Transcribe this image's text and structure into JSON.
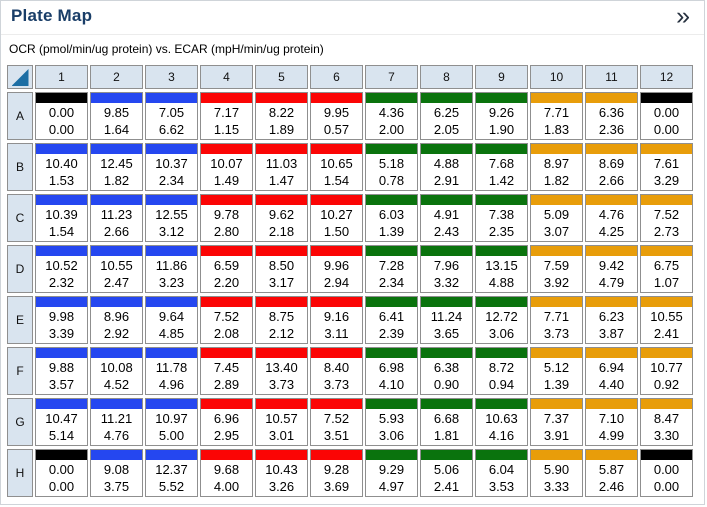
{
  "panel": {
    "title": "Plate Map",
    "expand_icon": "»"
  },
  "subtitle": "OCR (pmol/min/ug protein) vs. ECAR (mpH/min/ug protein)",
  "colors": {
    "title_text": "#1a3e68",
    "header_bg": "#d9e4ef",
    "grid_border": "#8f8f8f",
    "corner_triangle": "#1c6ea4",
    "chevron": "#26313f",
    "groups": {
      "black": "#000000",
      "blue": "#2547f0",
      "red": "#fb0505",
      "green": "#0a730d",
      "orange": "#e89d0a"
    }
  },
  "plate": {
    "column_headers": [
      "1",
      "2",
      "3",
      "4",
      "5",
      "6",
      "7",
      "8",
      "9",
      "10",
      "11",
      "12"
    ],
    "rows": [
      {
        "label": "A",
        "cells": [
          {
            "ocr": "0.00",
            "ecar": "0.00",
            "group": "black"
          },
          {
            "ocr": "9.85",
            "ecar": "1.64",
            "group": "blue"
          },
          {
            "ocr": "7.05",
            "ecar": "6.62",
            "group": "blue"
          },
          {
            "ocr": "7.17",
            "ecar": "1.15",
            "group": "red"
          },
          {
            "ocr": "8.22",
            "ecar": "1.89",
            "group": "red"
          },
          {
            "ocr": "9.95",
            "ecar": "0.57",
            "group": "red"
          },
          {
            "ocr": "4.36",
            "ecar": "2.00",
            "group": "green"
          },
          {
            "ocr": "6.25",
            "ecar": "2.05",
            "group": "green"
          },
          {
            "ocr": "9.26",
            "ecar": "1.90",
            "group": "green"
          },
          {
            "ocr": "7.71",
            "ecar": "1.83",
            "group": "orange"
          },
          {
            "ocr": "6.36",
            "ecar": "2.36",
            "group": "orange"
          },
          {
            "ocr": "0.00",
            "ecar": "0.00",
            "group": "black"
          }
        ]
      },
      {
        "label": "B",
        "cells": [
          {
            "ocr": "10.40",
            "ecar": "1.53",
            "group": "blue"
          },
          {
            "ocr": "12.45",
            "ecar": "1.82",
            "group": "blue"
          },
          {
            "ocr": "10.37",
            "ecar": "2.34",
            "group": "blue"
          },
          {
            "ocr": "10.07",
            "ecar": "1.49",
            "group": "red"
          },
          {
            "ocr": "11.03",
            "ecar": "1.47",
            "group": "red"
          },
          {
            "ocr": "10.65",
            "ecar": "1.54",
            "group": "red"
          },
          {
            "ocr": "5.18",
            "ecar": "0.78",
            "group": "green"
          },
          {
            "ocr": "4.88",
            "ecar": "2.91",
            "group": "green"
          },
          {
            "ocr": "7.68",
            "ecar": "1.42",
            "group": "green"
          },
          {
            "ocr": "8.97",
            "ecar": "1.82",
            "group": "orange"
          },
          {
            "ocr": "8.69",
            "ecar": "2.66",
            "group": "orange"
          },
          {
            "ocr": "7.61",
            "ecar": "3.29",
            "group": "orange"
          }
        ]
      },
      {
        "label": "C",
        "cells": [
          {
            "ocr": "10.39",
            "ecar": "1.54",
            "group": "blue"
          },
          {
            "ocr": "11.23",
            "ecar": "2.66",
            "group": "blue"
          },
          {
            "ocr": "12.55",
            "ecar": "3.12",
            "group": "blue"
          },
          {
            "ocr": "9.78",
            "ecar": "2.80",
            "group": "red"
          },
          {
            "ocr": "9.62",
            "ecar": "2.18",
            "group": "red"
          },
          {
            "ocr": "10.27",
            "ecar": "1.50",
            "group": "red"
          },
          {
            "ocr": "6.03",
            "ecar": "1.39",
            "group": "green"
          },
          {
            "ocr": "4.91",
            "ecar": "2.43",
            "group": "green"
          },
          {
            "ocr": "7.38",
            "ecar": "2.35",
            "group": "green"
          },
          {
            "ocr": "5.09",
            "ecar": "3.07",
            "group": "orange"
          },
          {
            "ocr": "4.76",
            "ecar": "4.25",
            "group": "orange"
          },
          {
            "ocr": "7.52",
            "ecar": "2.73",
            "group": "orange"
          }
        ]
      },
      {
        "label": "D",
        "cells": [
          {
            "ocr": "10.52",
            "ecar": "2.32",
            "group": "blue"
          },
          {
            "ocr": "10.55",
            "ecar": "2.47",
            "group": "blue"
          },
          {
            "ocr": "11.86",
            "ecar": "3.23",
            "group": "blue"
          },
          {
            "ocr": "6.59",
            "ecar": "2.20",
            "group": "red"
          },
          {
            "ocr": "8.50",
            "ecar": "3.17",
            "group": "red"
          },
          {
            "ocr": "9.96",
            "ecar": "2.94",
            "group": "red"
          },
          {
            "ocr": "7.28",
            "ecar": "2.34",
            "group": "green"
          },
          {
            "ocr": "7.96",
            "ecar": "3.32",
            "group": "green"
          },
          {
            "ocr": "13.15",
            "ecar": "4.88",
            "group": "green"
          },
          {
            "ocr": "7.59",
            "ecar": "3.92",
            "group": "orange"
          },
          {
            "ocr": "9.42",
            "ecar": "4.79",
            "group": "orange"
          },
          {
            "ocr": "6.75",
            "ecar": "1.07",
            "group": "orange"
          }
        ]
      },
      {
        "label": "E",
        "cells": [
          {
            "ocr": "9.98",
            "ecar": "3.39",
            "group": "blue"
          },
          {
            "ocr": "8.96",
            "ecar": "2.92",
            "group": "blue"
          },
          {
            "ocr": "9.64",
            "ecar": "4.85",
            "group": "blue"
          },
          {
            "ocr": "7.52",
            "ecar": "2.08",
            "group": "red"
          },
          {
            "ocr": "8.75",
            "ecar": "2.12",
            "group": "red"
          },
          {
            "ocr": "9.16",
            "ecar": "3.11",
            "group": "red"
          },
          {
            "ocr": "6.41",
            "ecar": "2.39",
            "group": "green"
          },
          {
            "ocr": "11.24",
            "ecar": "3.65",
            "group": "green"
          },
          {
            "ocr": "12.72",
            "ecar": "3.06",
            "group": "green"
          },
          {
            "ocr": "7.71",
            "ecar": "3.73",
            "group": "orange"
          },
          {
            "ocr": "6.23",
            "ecar": "3.87",
            "group": "orange"
          },
          {
            "ocr": "10.55",
            "ecar": "2.41",
            "group": "orange"
          }
        ]
      },
      {
        "label": "F",
        "cells": [
          {
            "ocr": "9.88",
            "ecar": "3.57",
            "group": "blue"
          },
          {
            "ocr": "10.08",
            "ecar": "4.52",
            "group": "blue"
          },
          {
            "ocr": "11.78",
            "ecar": "4.96",
            "group": "blue"
          },
          {
            "ocr": "7.45",
            "ecar": "2.89",
            "group": "red"
          },
          {
            "ocr": "13.40",
            "ecar": "3.73",
            "group": "red"
          },
          {
            "ocr": "8.40",
            "ecar": "3.73",
            "group": "red"
          },
          {
            "ocr": "6.98",
            "ecar": "4.10",
            "group": "green"
          },
          {
            "ocr": "6.38",
            "ecar": "0.90",
            "group": "green"
          },
          {
            "ocr": "8.72",
            "ecar": "0.94",
            "group": "green"
          },
          {
            "ocr": "5.12",
            "ecar": "1.39",
            "group": "orange"
          },
          {
            "ocr": "6.94",
            "ecar": "4.40",
            "group": "orange"
          },
          {
            "ocr": "10.77",
            "ecar": "0.92",
            "group": "orange"
          }
        ]
      },
      {
        "label": "G",
        "cells": [
          {
            "ocr": "10.47",
            "ecar": "5.14",
            "group": "blue"
          },
          {
            "ocr": "11.21",
            "ecar": "4.76",
            "group": "blue"
          },
          {
            "ocr": "10.97",
            "ecar": "5.00",
            "group": "blue"
          },
          {
            "ocr": "6.96",
            "ecar": "2.95",
            "group": "red"
          },
          {
            "ocr": "10.57",
            "ecar": "3.01",
            "group": "red"
          },
          {
            "ocr": "7.52",
            "ecar": "3.51",
            "group": "red"
          },
          {
            "ocr": "5.93",
            "ecar": "3.06",
            "group": "green"
          },
          {
            "ocr": "6.68",
            "ecar": "1.81",
            "group": "green"
          },
          {
            "ocr": "10.63",
            "ecar": "4.16",
            "group": "green"
          },
          {
            "ocr": "7.37",
            "ecar": "3.91",
            "group": "orange"
          },
          {
            "ocr": "7.10",
            "ecar": "4.99",
            "group": "orange"
          },
          {
            "ocr": "8.47",
            "ecar": "3.30",
            "group": "orange"
          }
        ]
      },
      {
        "label": "H",
        "cells": [
          {
            "ocr": "0.00",
            "ecar": "0.00",
            "group": "black"
          },
          {
            "ocr": "9.08",
            "ecar": "3.75",
            "group": "blue"
          },
          {
            "ocr": "12.37",
            "ecar": "5.52",
            "group": "blue"
          },
          {
            "ocr": "9.68",
            "ecar": "4.00",
            "group": "red"
          },
          {
            "ocr": "10.43",
            "ecar": "3.26",
            "group": "red"
          },
          {
            "ocr": "9.28",
            "ecar": "3.69",
            "group": "red"
          },
          {
            "ocr": "9.29",
            "ecar": "4.97",
            "group": "green"
          },
          {
            "ocr": "5.06",
            "ecar": "2.41",
            "group": "green"
          },
          {
            "ocr": "6.04",
            "ecar": "3.53",
            "group": "green"
          },
          {
            "ocr": "5.90",
            "ecar": "3.33",
            "group": "orange"
          },
          {
            "ocr": "5.87",
            "ecar": "2.46",
            "group": "orange"
          },
          {
            "ocr": "0.00",
            "ecar": "0.00",
            "group": "black"
          }
        ]
      }
    ]
  }
}
